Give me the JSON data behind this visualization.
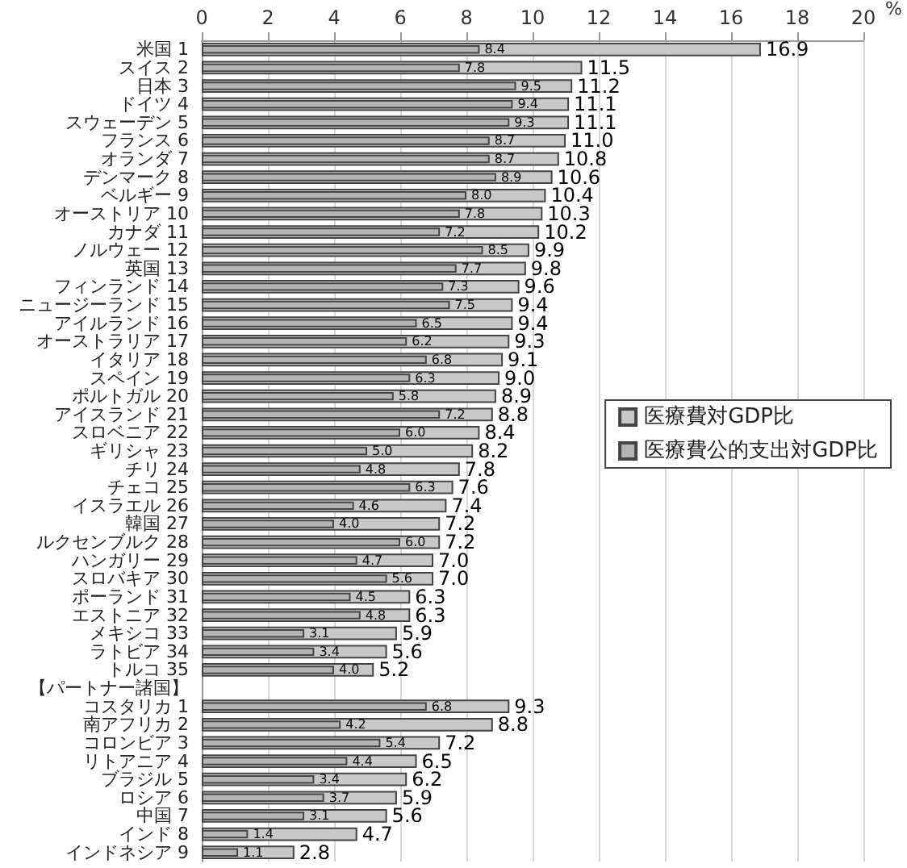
{
  "chart_data": {
    "type": "bar",
    "orientation": "horizontal",
    "xlabel": "%",
    "categories": [
      "米国 1",
      "スイス 2",
      "日本 3",
      "ドイツ 4",
      "スウェーデン 5",
      "フランス 6",
      "オランダ 7",
      "デンマーク 8",
      "ベルギー 9",
      "オーストリア 10",
      "カナダ 11",
      "ノルウェー 12",
      "英国 13",
      "フィンランド 14",
      "ニュージーランド 15",
      "アイルランド 16",
      "オーストラリア 17",
      "イタリア 18",
      "スペイン 19",
      "ポルトガル 20",
      "アイスランド 21",
      "スロベニア 22",
      "ギリシャ 23",
      "チリ 24",
      "チェコ 25",
      "イスラエル 26",
      "韓国 27",
      "ルクセンブルク 28",
      "ハンガリー 29",
      "スロバキア 30",
      "ポーランド 31",
      "エストニア 32",
      "メキシコ 33",
      "ラトビア 34",
      "トルコ 35",
      "【パートナー諸国】",
      "コスタリカ 1",
      "南アフリカ 2",
      "コロンビア 3",
      "リトアニア 4",
      "ブラジル 5",
      "ロシア 6",
      "中国 7",
      "インド 8",
      "インドネシア 9"
    ],
    "series": [
      {
        "name": "医療費対GDP比",
        "color": "#c8c8c8",
        "values": [
          16.9,
          11.5,
          11.2,
          11.1,
          11.1,
          11.0,
          10.8,
          10.6,
          10.4,
          10.3,
          10.2,
          9.9,
          9.8,
          9.6,
          9.4,
          9.4,
          9.3,
          9.1,
          9.0,
          8.9,
          8.8,
          8.4,
          8.2,
          7.8,
          7.6,
          7.4,
          7.2,
          7.2,
          7.0,
          7.0,
          6.3,
          6.3,
          5.9,
          5.6,
          5.2,
          null,
          9.3,
          8.8,
          7.2,
          6.5,
          6.2,
          5.9,
          5.6,
          4.7,
          2.8
        ],
        "value_labels": [
          "16.9",
          "11.5",
          "11.2",
          "11.1",
          "11.1",
          "11.0",
          "10.8",
          "10.6",
          "10.4",
          "10.3",
          "10.2",
          "9.9",
          "9.8",
          "9.6",
          "9.4",
          "9.4",
          "9.3",
          "9.1",
          "9.0",
          "8.9",
          "8.8",
          "8.4",
          "8.2",
          "7.8",
          "7.6",
          "7.4",
          "7.2",
          "7.2",
          "7.0",
          "7.0",
          "6.3",
          "6.3",
          "5.9",
          "5.6",
          "5.2",
          null,
          "9.3",
          "8.8",
          "7.2",
          "6.5",
          "6.2",
          "5.9",
          "5.6",
          "4.7",
          "2.8"
        ]
      },
      {
        "name": "医療費公的支出対GDP比",
        "color": "#b4b4b4",
        "values": [
          8.4,
          7.8,
          9.5,
          9.4,
          9.3,
          8.7,
          8.7,
          8.9,
          8.0,
          7.8,
          7.2,
          8.5,
          7.7,
          7.3,
          7.5,
          6.5,
          6.2,
          6.8,
          6.3,
          5.8,
          7.2,
          6.0,
          5.0,
          4.8,
          6.3,
          4.6,
          4.0,
          6.0,
          4.7,
          5.6,
          4.5,
          4.8,
          3.1,
          3.4,
          4.0,
          null,
          6.8,
          4.2,
          5.4,
          4.4,
          3.4,
          3.7,
          3.1,
          1.4,
          1.1
        ],
        "value_labels": [
          "8.4",
          "7.8",
          "9.5",
          "9.4",
          "9.3",
          "8.7",
          "8.7",
          "8.9",
          "8.0",
          "7.8",
          "7.2",
          "8.5",
          "7.7",
          "7.3",
          "7.5",
          "6.5",
          "6.2",
          "6.8",
          "6.3",
          "5.8",
          "7.2",
          "6.0",
          "5.0",
          "4.8",
          "6.3",
          "4.6",
          "4.0",
          "6.0",
          "4.7",
          "5.6",
          "4.5",
          "4.8",
          "3.1",
          "3.4",
          "4.0",
          null,
          "6.8",
          "4.2",
          "5.4",
          "4.4",
          "3.4",
          "3.7",
          "3.1",
          "1.4",
          "1.1"
        ]
      }
    ],
    "xlim": [
      0,
      20
    ],
    "xticks": [
      0,
      2,
      4,
      6,
      8,
      10,
      12,
      14,
      16,
      18,
      20
    ],
    "grid": "x",
    "legend": "right"
  }
}
